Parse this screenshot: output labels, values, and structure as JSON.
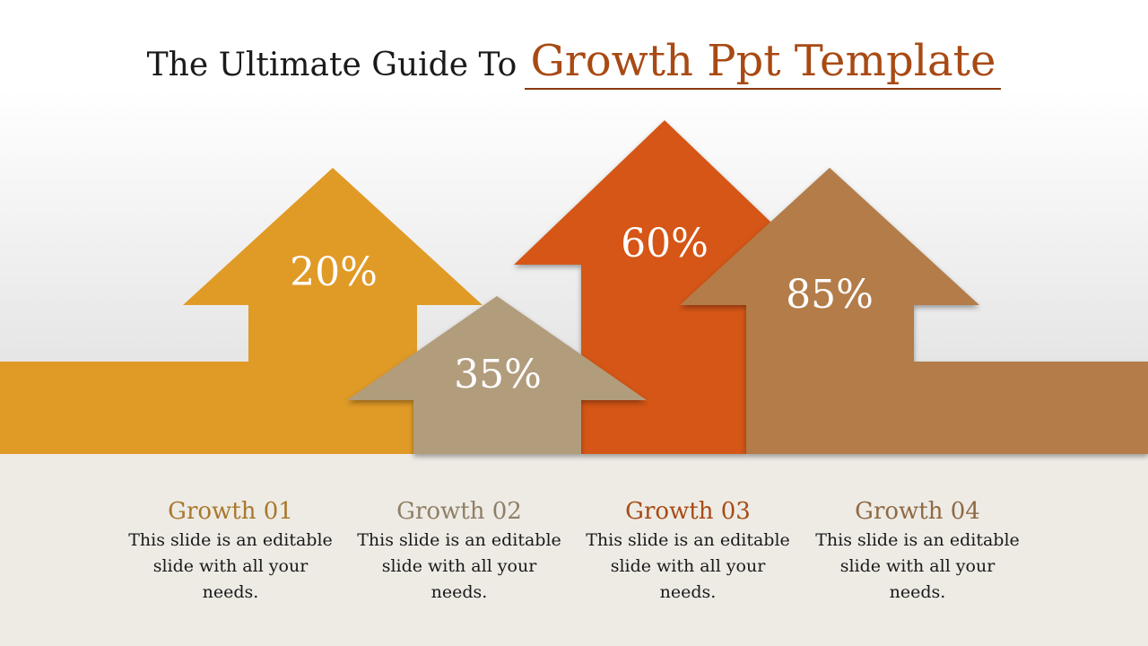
{
  "title": {
    "prefix": "The Ultimate Guide To",
    "highlight": "Growth Ppt Template"
  },
  "arrows": [
    {
      "label": "20%",
      "value": 20,
      "color": "#e09a26"
    },
    {
      "label": "35%",
      "value": 35,
      "color": "#b19c7c"
    },
    {
      "label": "60%",
      "value": 60,
      "color": "#d55718"
    },
    {
      "label": "85%",
      "value": 85,
      "color": "#b37c48"
    }
  ],
  "items": [
    {
      "title": "Growth 01",
      "desc": "This slide is an editable slide with all your needs.",
      "color": "#a8782c"
    },
    {
      "title": "Growth 02",
      "desc": "This slide is an editable slide with all your needs.",
      "color": "#8f7f66"
    },
    {
      "title": "Growth 03",
      "desc": "This slide is an editable slide with all your needs.",
      "color": "#a84a14"
    },
    {
      "title": "Growth 04",
      "desc": "This slide is an editable slide with all your needs.",
      "color": "#8f6a44"
    }
  ]
}
